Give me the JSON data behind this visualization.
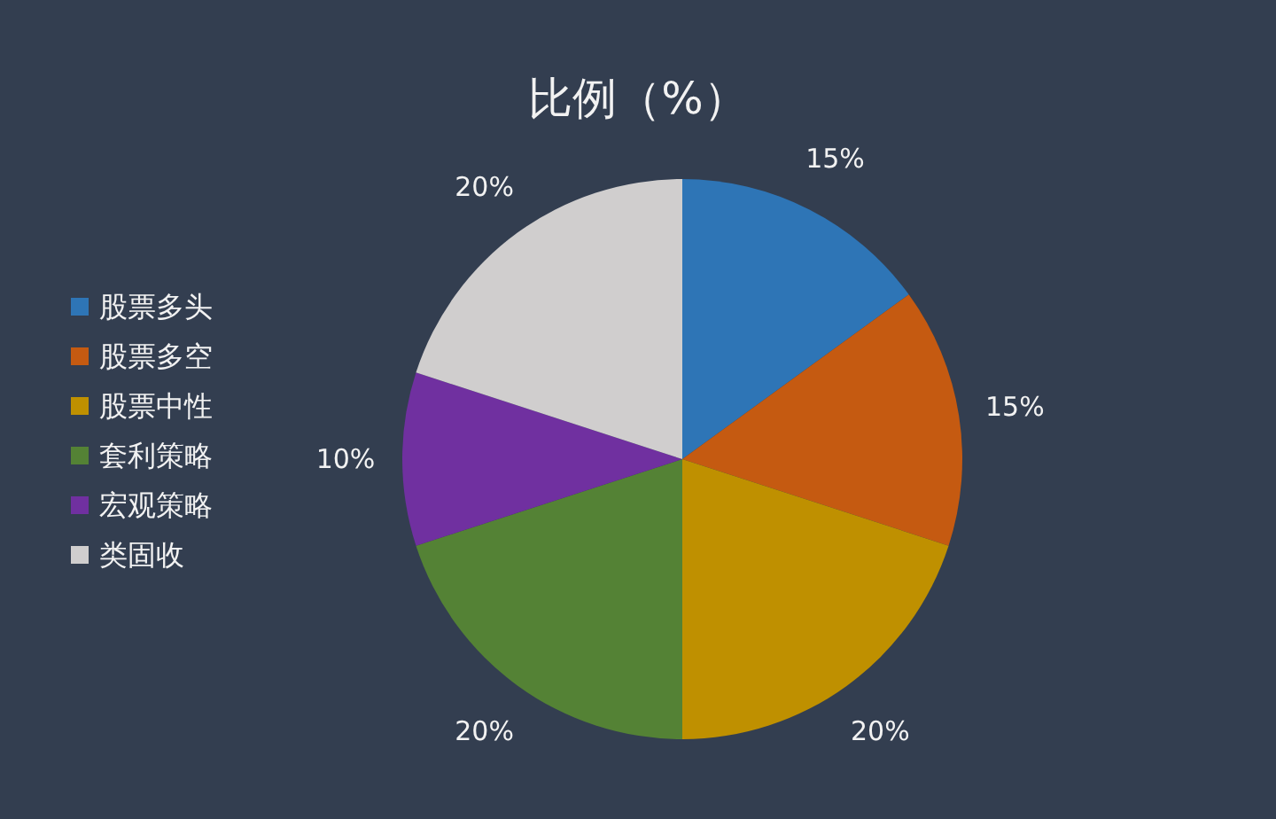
{
  "chart_data": {
    "type": "pie",
    "title": "比例（%）",
    "categories": [
      "股票多头",
      "股票多空",
      "股票中性",
      "套利策略",
      "宏观策略",
      "类固收"
    ],
    "values": [
      15,
      15,
      20,
      20,
      10,
      20
    ],
    "colors": [
      "#2e75b6",
      "#c55a11",
      "#bf9000",
      "#548235",
      "#7030a0",
      "#d0cece"
    ],
    "value_labels": [
      "15%",
      "15%",
      "20%",
      "20%",
      "10%",
      "20%"
    ],
    "legend": "left"
  }
}
